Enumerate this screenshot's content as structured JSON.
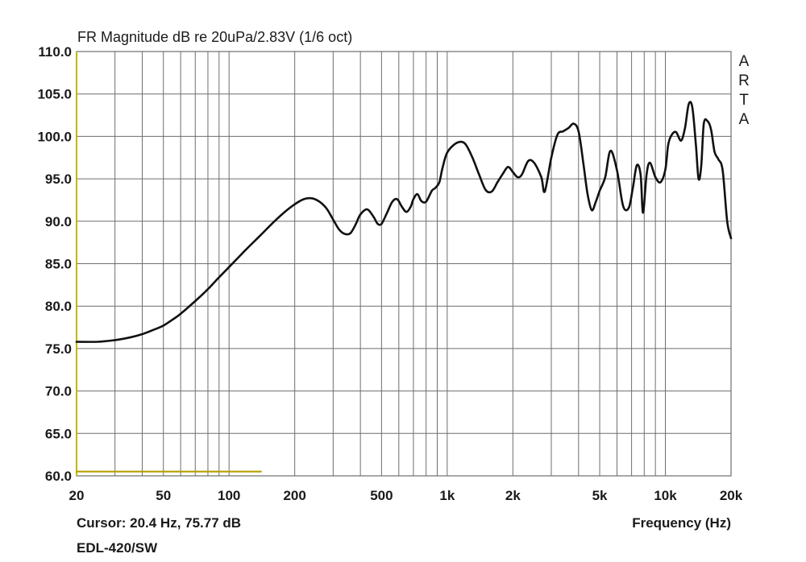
{
  "chart_data": {
    "type": "line",
    "title": "FR Magnitude dB re 20uPa/2.83V (1/6 oct)",
    "xlabel": "Frequency (Hz)",
    "ylabel": "",
    "x_scale": "log",
    "xlim": [
      20,
      20000
    ],
    "ylim": [
      60,
      110
    ],
    "grid": true,
    "y_ticks": [
      {
        "value": 60,
        "label": "60.0"
      },
      {
        "value": 65,
        "label": "65.0"
      },
      {
        "value": 70,
        "label": "70.0"
      },
      {
        "value": 75,
        "label": "75.0"
      },
      {
        "value": 80,
        "label": "80.0"
      },
      {
        "value": 85,
        "label": "85.0"
      },
      {
        "value": 90,
        "label": "90.0"
      },
      {
        "value": 95,
        "label": "95.0"
      },
      {
        "value": 100,
        "label": "100.0"
      },
      {
        "value": 105,
        "label": "105.0"
      },
      {
        "value": 110,
        "label": "110.0"
      }
    ],
    "x_ticks": [
      {
        "value": 20,
        "label": "20"
      },
      {
        "value": 50,
        "label": "50"
      },
      {
        "value": 100,
        "label": "100"
      },
      {
        "value": 200,
        "label": "200"
      },
      {
        "value": 500,
        "label": "500"
      },
      {
        "value": 1000,
        "label": "1k"
      },
      {
        "value": 2000,
        "label": "2k"
      },
      {
        "value": 5000,
        "label": "5k"
      },
      {
        "value": 10000,
        "label": "10k"
      },
      {
        "value": 20000,
        "label": "20k"
      }
    ],
    "x_grid": [
      20,
      30,
      40,
      50,
      60,
      70,
      80,
      90,
      100,
      200,
      300,
      400,
      500,
      600,
      700,
      800,
      900,
      1000,
      2000,
      3000,
      4000,
      5000,
      6000,
      7000,
      8000,
      9000,
      10000,
      20000
    ],
    "series": [
      {
        "color": "#111111",
        "x": [
          20,
          25,
          30,
          35,
          40,
          45,
          50,
          55,
          60,
          70,
          80,
          90,
          100,
          110,
          120,
          140,
          160,
          180,
          200,
          220,
          240,
          260,
          280,
          300,
          320,
          340,
          360,
          380,
          400,
          430,
          460,
          480,
          500,
          530,
          560,
          590,
          620,
          650,
          680,
          700,
          730,
          760,
          800,
          850,
          880,
          920,
          950,
          1000,
          1100,
          1200,
          1300,
          1400,
          1500,
          1600,
          1700,
          1800,
          1900,
          2000,
          2100,
          2200,
          2350,
          2500,
          2700,
          2800,
          3000,
          3200,
          3400,
          3600,
          3800,
          4000,
          4200,
          4400,
          4600,
          4800,
          5000,
          5300,
          5600,
          6000,
          6400,
          6800,
          7100,
          7400,
          7700,
          7900,
          8200,
          8500,
          9000,
          9500,
          10000,
          10300,
          10700,
          11200,
          11800,
          12300,
          12800,
          13300,
          13800,
          14200,
          14600,
          15000,
          15600,
          16200,
          16800,
          17500,
          18300,
          19200,
          20000
        ],
        "y": [
          75.8,
          75.8,
          76.0,
          76.3,
          76.7,
          77.2,
          77.7,
          78.4,
          79.1,
          80.6,
          82.0,
          83.4,
          84.6,
          85.7,
          86.7,
          88.4,
          89.9,
          91.1,
          92.0,
          92.6,
          92.7,
          92.3,
          91.5,
          90.2,
          89.0,
          88.5,
          88.6,
          89.6,
          90.8,
          91.4,
          90.5,
          89.7,
          89.7,
          91.0,
          92.3,
          92.6,
          91.7,
          91.1,
          91.7,
          92.6,
          93.2,
          92.4,
          92.3,
          93.6,
          93.9,
          94.6,
          96.2,
          98.1,
          99.2,
          99.2,
          97.6,
          95.5,
          93.7,
          93.5,
          94.6,
          95.6,
          96.4,
          95.8,
          95.2,
          95.5,
          97.1,
          96.9,
          95.2,
          93.5,
          97.5,
          100.2,
          100.6,
          101.0,
          101.5,
          100.6,
          97.0,
          93.2,
          91.3,
          92.3,
          93.6,
          95.2,
          98.3,
          96.0,
          91.8,
          91.6,
          94.0,
          96.6,
          95.5,
          91.0,
          95.5,
          96.9,
          95.2,
          94.6,
          96.1,
          99.0,
          100.2,
          100.5,
          99.5,
          101.0,
          103.8,
          103.4,
          99.0,
          95.0,
          96.5,
          101.5,
          101.8,
          100.8,
          98.2,
          97.3,
          96.0,
          90.0,
          88.0
        ]
      },
      {
        "color": "#b5a000",
        "x": [
          20,
          140
        ],
        "y": [
          60.5,
          60.5
        ]
      }
    ]
  },
  "brand_letters": [
    "A",
    "R",
    "T",
    "A"
  ],
  "footer": {
    "cursor": "Cursor: 20.4 Hz, 75.77 dB",
    "device": "EDL-420/SW"
  },
  "colors": {
    "grid": "#6e6e6e",
    "curve": "#111111",
    "cursor": "#b5a000",
    "left_axis_accent": "#c8b400"
  }
}
